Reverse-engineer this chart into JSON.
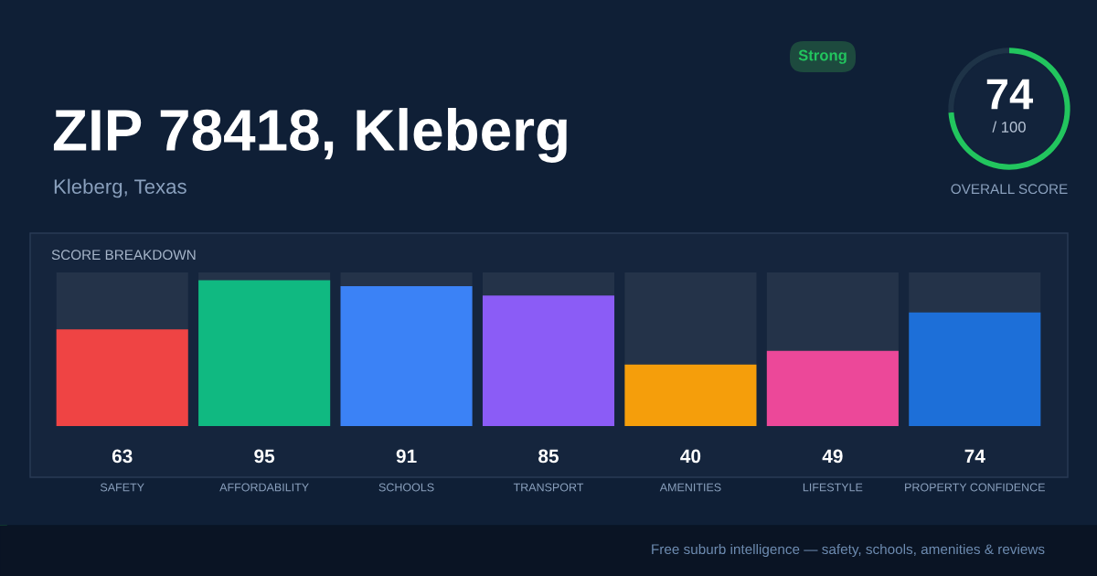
{
  "chart_data": [
    {
      "type": "donut",
      "title": "ZIP 78418, Kleberg",
      "categories": [
        null,
        null
      ],
      "values": [
        74,
        26
      ],
      "colors": [
        "#22c55e",
        "#1e3347"
      ],
      "annotations": [
        "Strong",
        "74",
        "/ 100",
        "OVERALL SCORE",
        "Kleberg, Texas"
      ]
    },
    {
      "type": "bar",
      "title": "SCORE BREAKDOWN",
      "categories": [
        "SAFETY",
        "AFFORDABILITY",
        "SCHOOLS",
        "TRANSPORT",
        "AMENITIES",
        "LIFESTYLE",
        "PROPERTY CONFIDENCE"
      ],
      "values": [
        63,
        95,
        91,
        85,
        40,
        49,
        74
      ],
      "colors": [
        "#ef4444",
        "#10b981",
        "#3b82f6",
        "#8b5cf6",
        "#f59e0b",
        "#ec4899",
        "#1d6fd8"
      ],
      "ylim": [
        0,
        100
      ],
      "data_labels": true,
      "annotations": [
        "Free suburb intelligence — safety, schools, amenities & reviews"
      ]
    }
  ]
}
